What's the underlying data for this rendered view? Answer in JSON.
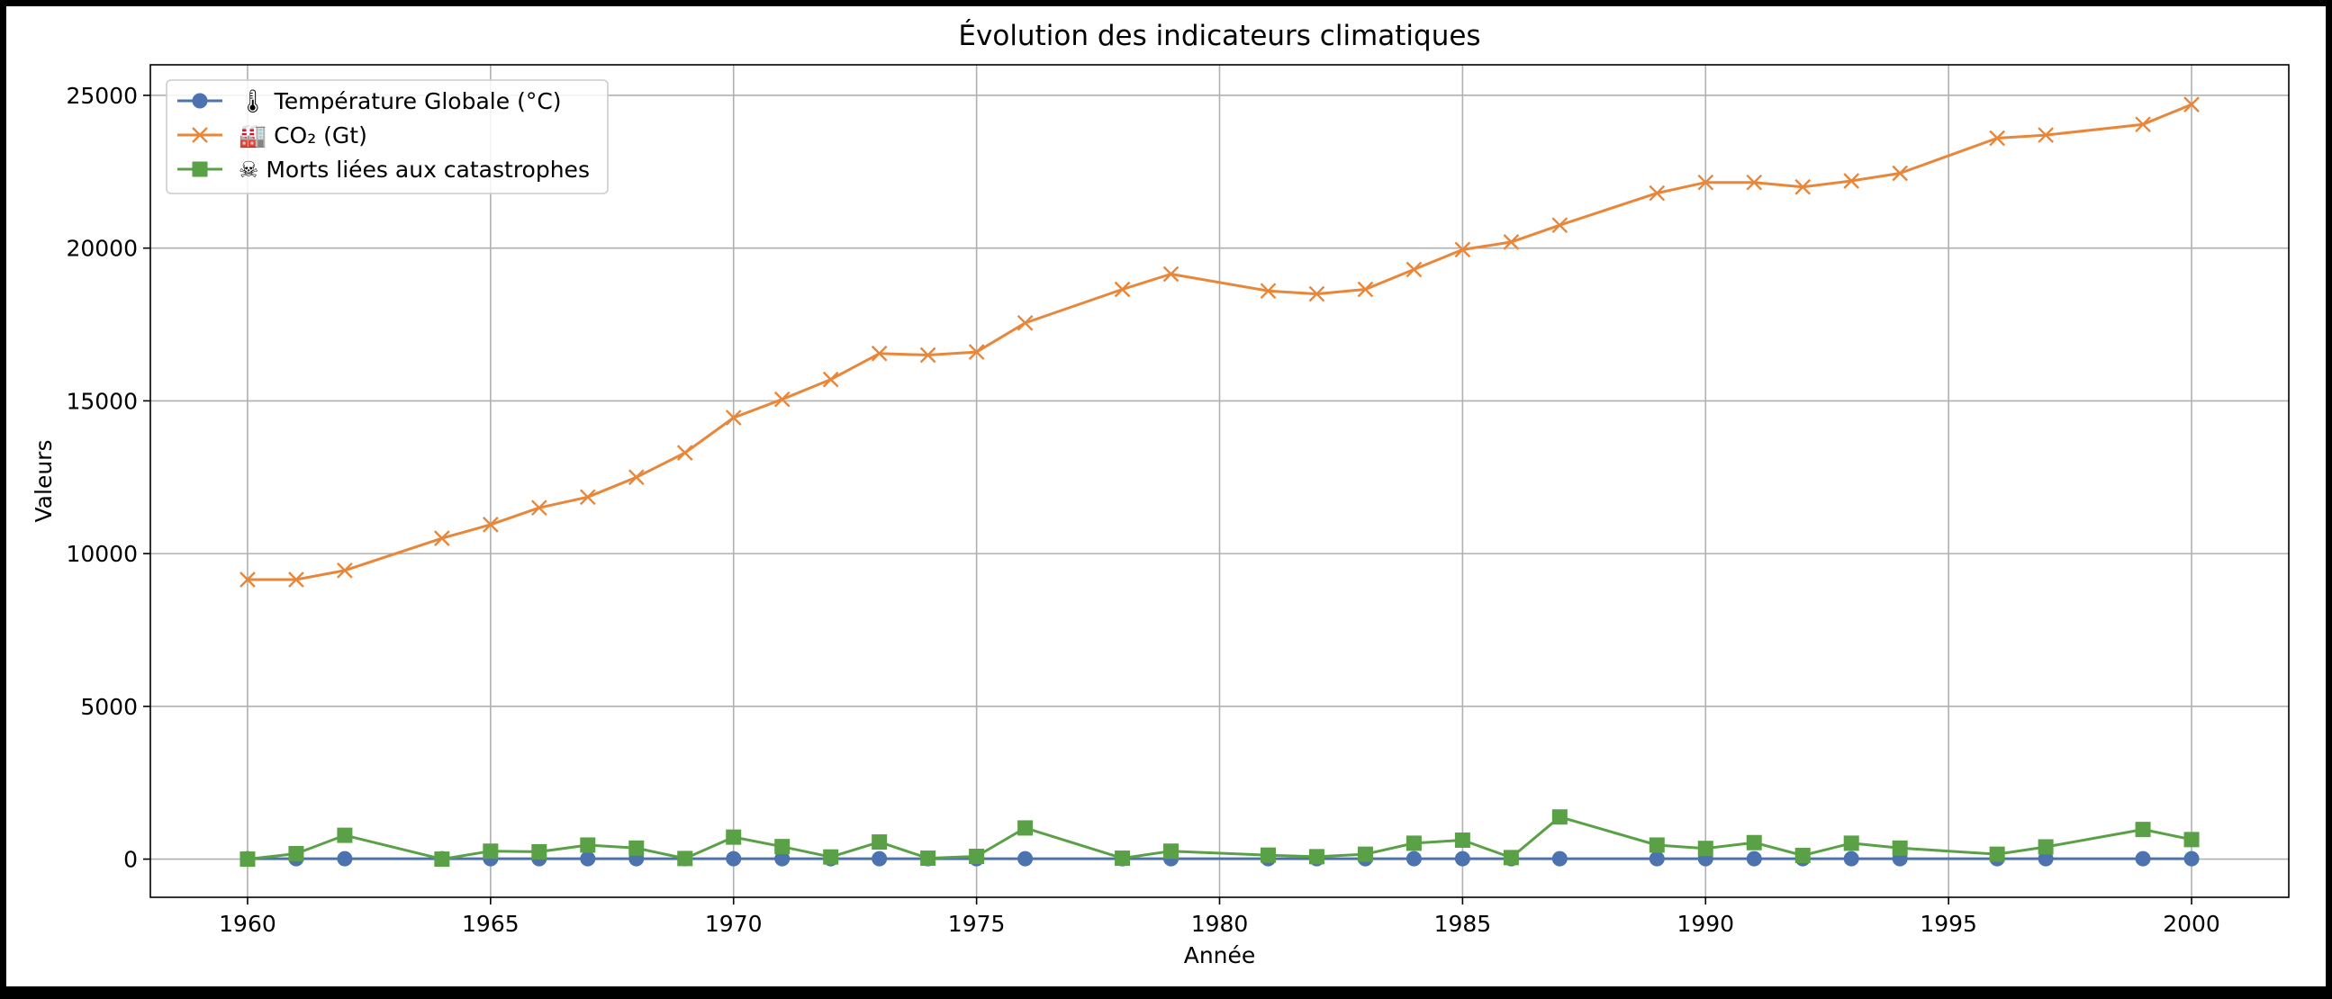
{
  "chart_data": {
    "type": "line",
    "title": "Évolution des indicateurs climatiques",
    "xlabel": "Année",
    "ylabel": "Valeurs",
    "xlim": [
      1958,
      2002
    ],
    "ylim": [
      -1250,
      26000
    ],
    "xticks": [
      1960,
      1965,
      1970,
      1975,
      1980,
      1985,
      1990,
      1995,
      2000
    ],
    "yticks": [
      0,
      5000,
      10000,
      15000,
      20000,
      25000
    ],
    "grid": true,
    "legend_position": "top-left",
    "series": [
      {
        "name": "🌡 Température Globale (°C)",
        "color": "#4c72b0",
        "marker": "circle",
        "x": [
          1960,
          1961,
          1962,
          1964,
          1965,
          1966,
          1967,
          1968,
          1969,
          1970,
          1971,
          1972,
          1973,
          1974,
          1975,
          1976,
          1978,
          1979,
          1981,
          1982,
          1983,
          1984,
          1985,
          1986,
          1987,
          1989,
          1990,
          1991,
          1992,
          1993,
          1994,
          1996,
          1997,
          1999,
          2000
        ],
        "y": [
          14.0,
          14.0,
          14.0,
          14.1,
          14.0,
          14.0,
          14.0,
          14.0,
          14.0,
          14.0,
          14.0,
          14.1,
          14.0,
          14.0,
          14.0,
          14.0,
          14.0,
          14.1,
          14.1,
          14.1,
          14.1,
          14.2,
          14.1,
          14.2,
          14.3,
          14.2,
          14.4,
          14.4,
          14.2,
          14.2,
          14.3,
          14.4,
          14.5,
          14.4,
          14.4
        ]
      },
      {
        "name": "🏭 CO₂ (Gt)",
        "color": "#e8873a",
        "marker": "x",
        "x": [
          1960,
          1961,
          1962,
          1964,
          1965,
          1966,
          1967,
          1968,
          1969,
          1970,
          1971,
          1972,
          1973,
          1974,
          1975,
          1976,
          1978,
          1979,
          1981,
          1982,
          1983,
          1984,
          1985,
          1986,
          1987,
          1989,
          1990,
          1991,
          1992,
          1993,
          1994,
          1996,
          1997,
          1999,
          2000
        ],
        "y": [
          9150,
          9150,
          9450,
          10500,
          10950,
          11500,
          11850,
          12500,
          13300,
          14450,
          15050,
          15700,
          16550,
          16500,
          16600,
          17550,
          18650,
          19150,
          18600,
          18500,
          18650,
          19300,
          19950,
          20200,
          20750,
          21800,
          22150,
          22150,
          22000,
          22200,
          22450,
          23600,
          23700,
          24050,
          24700
        ]
      },
      {
        "name": "☠ Morts liées aux catastrophes",
        "color": "#5aa046",
        "marker": "square",
        "x": [
          1960,
          1961,
          1962,
          1964,
          1965,
          1966,
          1967,
          1968,
          1969,
          1970,
          1971,
          1972,
          1973,
          1974,
          1975,
          1976,
          1978,
          1979,
          1981,
          1982,
          1983,
          1984,
          1985,
          1986,
          1987,
          1989,
          1990,
          1991,
          1992,
          1993,
          1994,
          1996,
          1997,
          1999,
          2000
        ],
        "y": [
          0,
          180,
          780,
          0,
          260,
          240,
          460,
          360,
          20,
          720,
          410,
          70,
          560,
          30,
          90,
          1020,
          30,
          260,
          130,
          80,
          160,
          520,
          620,
          50,
          1380,
          460,
          350,
          540,
          120,
          520,
          360,
          160,
          400,
          970,
          640
        ]
      }
    ]
  }
}
